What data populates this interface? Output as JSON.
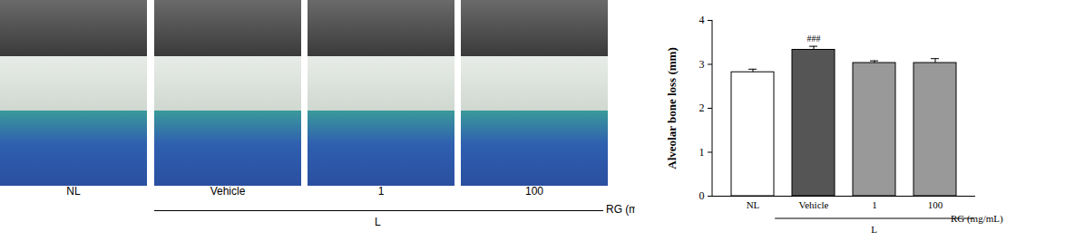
{
  "photo_panels": {
    "labels": [
      "NL",
      "Vehicle",
      "1",
      "100"
    ],
    "group_label": "L",
    "dose_label": "RG (mg/ml"
  },
  "chart_data": {
    "type": "bar",
    "categories": [
      "NL",
      "Vehicle",
      "1",
      "100"
    ],
    "values": [
      2.82,
      3.33,
      3.03,
      3.03
    ],
    "errors": [
      0.07,
      0.08,
      0.05,
      0.1
    ],
    "colors": [
      "#ffffff",
      "#555555",
      "#999999",
      "#999999"
    ],
    "y_label": "Alveolar bone loss (mm)",
    "ylim": [
      0,
      4
    ],
    "yticks": [
      0,
      1,
      2,
      3,
      4
    ],
    "annotations": [
      {
        "text": "###",
        "category": "Vehicle"
      }
    ],
    "x_group": {
      "label": "L",
      "categories": [
        "Vehicle",
        "1",
        "100"
      ],
      "title": "RG (mg/mL)"
    }
  }
}
